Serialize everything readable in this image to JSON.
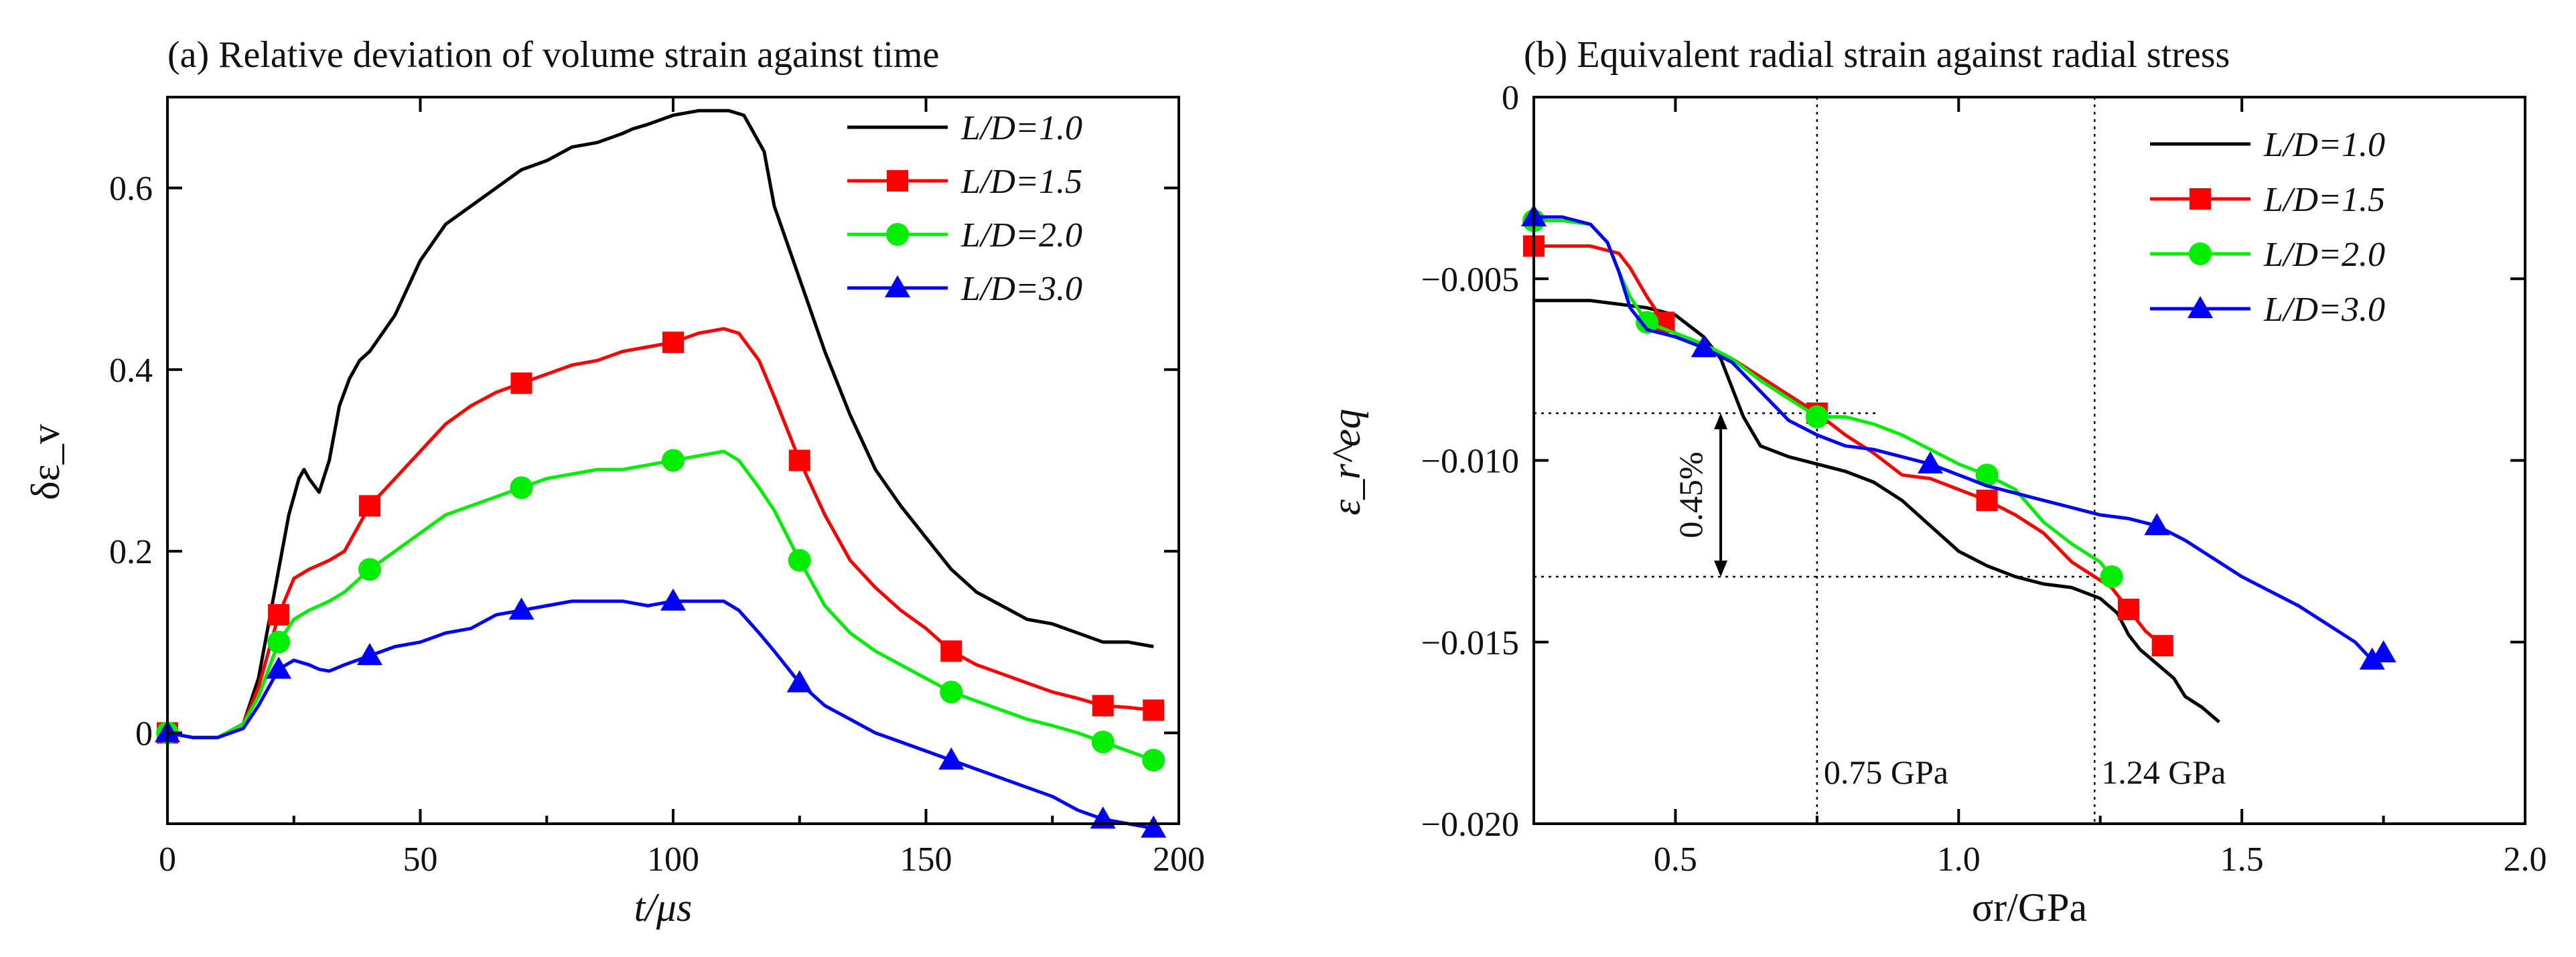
{
  "chart_data": [
    {
      "id": "a",
      "type": "line",
      "title": "(a) Relative deviation of volume strain against time",
      "xlabel": "t/μs",
      "ylabel": "δε_v",
      "xlim": [
        0,
        200
      ],
      "ylim": [
        -0.1,
        0.7
      ],
      "xticks": [
        0,
        50,
        100,
        150,
        200
      ],
      "xtick_labels": [
        "0",
        "50",
        "100",
        "150",
        "200"
      ],
      "yticks": [
        0,
        0.2,
        0.4,
        0.6
      ],
      "ytick_labels": [
        "0",
        "0.2",
        "0.4",
        "0.6"
      ],
      "grid": false,
      "legend": "top-right",
      "series": [
        {
          "name": "L/D=1.0",
          "color": "#000000",
          "marker": "none",
          "x": [
            0,
            5,
            10,
            15,
            18,
            20,
            22,
            24,
            26,
            27,
            28,
            30,
            32,
            34,
            36,
            38,
            40,
            45,
            50,
            55,
            60,
            65,
            70,
            75,
            80,
            85,
            90,
            92,
            95,
            100,
            105,
            108,
            111,
            114,
            118,
            120,
            125,
            130,
            135,
            140,
            145,
            150,
            155,
            160,
            165,
            170,
            175,
            180,
            185,
            190,
            195
          ],
          "y": [
            0.0,
            -0.005,
            -0.005,
            0.01,
            0.06,
            0.12,
            0.18,
            0.24,
            0.28,
            0.29,
            0.28,
            0.265,
            0.3,
            0.36,
            0.39,
            0.41,
            0.42,
            0.46,
            0.52,
            0.56,
            0.58,
            0.6,
            0.62,
            0.63,
            0.645,
            0.65,
            0.66,
            0.665,
            0.67,
            0.68,
            0.685,
            0.685,
            0.685,
            0.68,
            0.64,
            0.58,
            0.5,
            0.42,
            0.35,
            0.29,
            0.25,
            0.215,
            0.18,
            0.155,
            0.14,
            0.125,
            0.12,
            0.11,
            0.1,
            0.1,
            0.095
          ]
        },
        {
          "name": "L/D=1.5",
          "color": "#ff0000",
          "marker": "square",
          "x": [
            0,
            5,
            10,
            15,
            18,
            20,
            22,
            25,
            28,
            30,
            32,
            35,
            40,
            45,
            50,
            55,
            60,
            65,
            70,
            75,
            80,
            85,
            90,
            95,
            100,
            105,
            110,
            113,
            117,
            120,
            125,
            130,
            135,
            140,
            145,
            150,
            155,
            160,
            165,
            170,
            175,
            180,
            185,
            190,
            195
          ],
          "y": [
            0.0,
            -0.005,
            -0.005,
            0.01,
            0.05,
            0.09,
            0.13,
            0.17,
            0.18,
            0.185,
            0.19,
            0.2,
            0.25,
            0.28,
            0.31,
            0.34,
            0.36,
            0.375,
            0.385,
            0.395,
            0.405,
            0.41,
            0.42,
            0.425,
            0.43,
            0.44,
            0.445,
            0.44,
            0.41,
            0.37,
            0.3,
            0.24,
            0.19,
            0.16,
            0.135,
            0.115,
            0.09,
            0.075,
            0.065,
            0.055,
            0.045,
            0.038,
            0.03,
            0.028,
            0.025
          ]
        },
        {
          "name": "L/D=2.0",
          "color": "#00ee00",
          "marker": "circle",
          "x": [
            0,
            5,
            10,
            15,
            18,
            20,
            22,
            25,
            28,
            30,
            32,
            35,
            40,
            45,
            50,
            55,
            60,
            65,
            70,
            75,
            80,
            85,
            90,
            95,
            100,
            105,
            110,
            113,
            117,
            120,
            125,
            130,
            135,
            140,
            145,
            150,
            155,
            160,
            165,
            170,
            175,
            180,
            185,
            190,
            195
          ],
          "y": [
            0.0,
            -0.005,
            -0.005,
            0.01,
            0.04,
            0.07,
            0.1,
            0.125,
            0.135,
            0.14,
            0.145,
            0.155,
            0.18,
            0.2,
            0.22,
            0.24,
            0.25,
            0.26,
            0.27,
            0.28,
            0.285,
            0.29,
            0.29,
            0.295,
            0.3,
            0.305,
            0.31,
            0.3,
            0.27,
            0.245,
            0.19,
            0.14,
            0.11,
            0.09,
            0.075,
            0.06,
            0.045,
            0.035,
            0.025,
            0.015,
            0.008,
            0.0,
            -0.01,
            -0.02,
            -0.03
          ]
        },
        {
          "name": "L/D=3.0",
          "color": "#0000ff",
          "marker": "triangle",
          "x": [
            0,
            5,
            10,
            15,
            18,
            20,
            22,
            25,
            28,
            30,
            32,
            35,
            40,
            45,
            50,
            55,
            60,
            65,
            70,
            75,
            80,
            85,
            90,
            95,
            100,
            105,
            110,
            113,
            117,
            120,
            125,
            130,
            135,
            140,
            145,
            150,
            155,
            160,
            165,
            170,
            175,
            180,
            185,
            190,
            195
          ],
          "y": [
            0.0,
            -0.005,
            -0.005,
            0.005,
            0.03,
            0.05,
            0.07,
            0.08,
            0.075,
            0.07,
            0.068,
            0.075,
            0.085,
            0.095,
            0.1,
            0.11,
            0.115,
            0.13,
            0.135,
            0.14,
            0.145,
            0.145,
            0.145,
            0.14,
            0.145,
            0.145,
            0.145,
            0.135,
            0.11,
            0.09,
            0.055,
            0.03,
            0.015,
            0.0,
            -0.01,
            -0.02,
            -0.03,
            -0.04,
            -0.05,
            -0.06,
            -0.07,
            -0.085,
            -0.095,
            -0.1,
            -0.105
          ]
        }
      ]
    },
    {
      "id": "b",
      "type": "line",
      "title": "(b) Equivalent radial strain against radial stress",
      "xlabel": "σr/GPa",
      "ylabel": "ε_r^eq",
      "xlim": [
        0.25,
        2.0
      ],
      "ylim": [
        -0.02,
        0
      ],
      "xticks": [
        0.5,
        1.0,
        1.5,
        2.0
      ],
      "xtick_labels": [
        "0.5",
        "1.0",
        "1.5",
        "2.0"
      ],
      "yticks": [
        0,
        -0.005,
        -0.01,
        -0.015,
        -0.02
      ],
      "ytick_labels": [
        "0",
        "−0.005",
        "−0.010",
        "−0.015",
        "−0.020"
      ],
      "grid": false,
      "legend": "top-right",
      "annotations": {
        "vline_1": {
          "x": 0.75,
          "label": "0.75 GPa"
        },
        "vline_2": {
          "x": 1.24,
          "label": "1.24 GPa"
        },
        "hline_upper": -0.0087,
        "hline_lower": -0.0132,
        "gap_label": "0.45%"
      },
      "series": [
        {
          "name": "L/D=1.0",
          "color": "#000000",
          "marker": "none",
          "x": [
            0.25,
            0.3,
            0.35,
            0.4,
            0.45,
            0.5,
            0.55,
            0.58,
            0.6,
            0.62,
            0.65,
            0.7,
            0.75,
            0.8,
            0.85,
            0.9,
            0.95,
            1.0,
            1.05,
            1.1,
            1.15,
            1.2,
            1.25,
            1.28,
            1.3,
            1.32,
            1.35,
            1.38,
            1.4,
            1.43,
            1.46
          ],
          "y": [
            -0.0056,
            -0.0056,
            -0.0056,
            -0.0057,
            -0.0058,
            -0.006,
            -0.0066,
            -0.0072,
            -0.008,
            -0.0088,
            -0.0096,
            -0.0099,
            -0.0101,
            -0.0103,
            -0.0106,
            -0.0111,
            -0.0118,
            -0.0125,
            -0.0129,
            -0.0132,
            -0.0134,
            -0.0135,
            -0.0138,
            -0.0142,
            -0.0148,
            -0.0152,
            -0.0156,
            -0.016,
            -0.0165,
            -0.0168,
            -0.0172
          ]
        },
        {
          "name": "L/D=1.5",
          "color": "#ff0000",
          "marker": "square",
          "x": [
            0.25,
            0.3,
            0.35,
            0.4,
            0.42,
            0.45,
            0.48,
            0.5,
            0.55,
            0.6,
            0.65,
            0.7,
            0.75,
            0.8,
            0.85,
            0.9,
            0.95,
            1.0,
            1.05,
            1.1,
            1.15,
            1.2,
            1.25,
            1.27,
            1.3,
            1.33,
            1.36
          ],
          "y": [
            -0.0041,
            -0.0041,
            -0.0041,
            -0.0043,
            -0.0047,
            -0.0055,
            -0.0062,
            -0.0065,
            -0.0068,
            -0.0072,
            -0.0077,
            -0.0082,
            -0.0087,
            -0.0093,
            -0.0098,
            -0.0104,
            -0.0105,
            -0.0108,
            -0.0111,
            -0.0115,
            -0.012,
            -0.0128,
            -0.0133,
            -0.0135,
            -0.0141,
            -0.0147,
            -0.0151
          ]
        },
        {
          "name": "L/D=2.0",
          "color": "#00ee00",
          "marker": "circle",
          "x": [
            0.25,
            0.3,
            0.35,
            0.38,
            0.4,
            0.42,
            0.45,
            0.5,
            0.55,
            0.6,
            0.65,
            0.7,
            0.75,
            0.8,
            0.85,
            0.9,
            0.95,
            1.0,
            1.05,
            1.1,
            1.15,
            1.2,
            1.25,
            1.27
          ],
          "y": [
            -0.0034,
            -0.0034,
            -0.0035,
            -0.004,
            -0.0048,
            -0.0055,
            -0.0062,
            -0.0065,
            -0.0068,
            -0.0072,
            -0.0078,
            -0.0083,
            -0.0088,
            -0.0088,
            -0.009,
            -0.0093,
            -0.0097,
            -0.0101,
            -0.0104,
            -0.0108,
            -0.0117,
            -0.0123,
            -0.0128,
            -0.0132
          ]
        },
        {
          "name": "L/D=3.0",
          "color": "#0000ff",
          "marker": "triangle",
          "x": [
            0.25,
            0.3,
            0.35,
            0.38,
            0.4,
            0.42,
            0.45,
            0.5,
            0.55,
            0.6,
            0.65,
            0.7,
            0.75,
            0.8,
            0.85,
            0.9,
            0.95,
            1.0,
            1.05,
            1.1,
            1.15,
            1.2,
            1.25,
            1.3,
            1.35,
            1.4,
            1.45,
            1.5,
            1.55,
            1.6,
            1.65,
            1.7,
            1.73,
            1.75
          ],
          "y": [
            -0.0033,
            -0.0033,
            -0.0035,
            -0.004,
            -0.0048,
            -0.0058,
            -0.0064,
            -0.0066,
            -0.0069,
            -0.0073,
            -0.0081,
            -0.0089,
            -0.0093,
            -0.0096,
            -0.0097,
            -0.0099,
            -0.0101,
            -0.0104,
            -0.0107,
            -0.0109,
            -0.0111,
            -0.0113,
            -0.0115,
            -0.0116,
            -0.0118,
            -0.0122,
            -0.0127,
            -0.0132,
            -0.0136,
            -0.014,
            -0.0145,
            -0.015,
            -0.0155,
            -0.0153
          ]
        }
      ]
    }
  ]
}
